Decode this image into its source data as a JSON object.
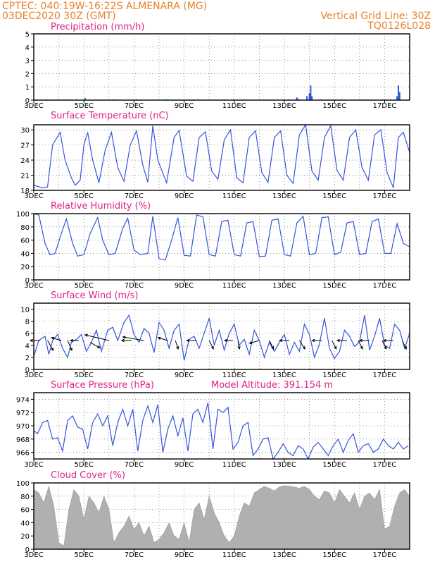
{
  "header": {
    "line1": "CPTEC:   040:19W-16:22S   ALMENARA (MG)",
    "line2": "03DEC2020 30Z (GMT)",
    "right1": "Vertical Grid Line: 30Z",
    "right2": "TQ0126L028"
  },
  "colors": {
    "header": "#e8822a",
    "panel_title": "#e0218a",
    "series_line": "#3355dd",
    "cloud_fill": "#b0b0b0",
    "wind_arrow": "#000000"
  },
  "x_axis": {
    "start_day": 3,
    "end_day": 18,
    "tick_labels": [
      "3DEC",
      "5DEC",
      "7DEC",
      "9DEC",
      "11DEC",
      "13DEC",
      "15DEC",
      "17DEC"
    ],
    "tick_days": [
      3,
      5,
      7,
      9,
      11,
      13,
      15,
      17
    ],
    "year_label": "2020"
  },
  "chart_data": [
    {
      "id": "precip",
      "type": "bar",
      "title": "Precipitation (mm/h)",
      "ylim": [
        0,
        5
      ],
      "yticks": [
        0,
        1,
        2,
        3,
        4,
        5
      ],
      "x": [
        3.1,
        3.5,
        3.9,
        4.3,
        4.7,
        5.05,
        5.5,
        6.2,
        7.1,
        8.3,
        9.4,
        10.6,
        11.4,
        12.2,
        13.2,
        13.5,
        13.55,
        13.9,
        14.0,
        14.05,
        14.1,
        14.5,
        15.3,
        16.2,
        16.9,
        17.5,
        17.55,
        17.6
      ],
      "values": [
        0.05,
        0.04,
        0.05,
        0.05,
        0.05,
        0.15,
        0.05,
        0.05,
        0.05,
        0.05,
        0.05,
        0.05,
        0.05,
        0.05,
        0.05,
        0.2,
        0.1,
        0.3,
        0.5,
        1.1,
        0.3,
        0.05,
        0.05,
        0.05,
        0.05,
        0.3,
        1.1,
        0.6
      ]
    },
    {
      "id": "temp",
      "type": "line",
      "title": "Surface Temperature (nC)",
      "ylim": [
        18,
        31
      ],
      "yticks": [
        18,
        21,
        24,
        27,
        30
      ],
      "x": [
        3.0,
        3.35,
        3.55,
        3.75,
        4.05,
        4.25,
        4.5,
        4.65,
        4.85,
        5.0,
        5.15,
        5.35,
        5.6,
        5.85,
        6.1,
        6.35,
        6.6,
        6.85,
        7.1,
        7.35,
        7.55,
        7.75,
        7.95,
        8.3,
        8.6,
        8.8,
        9.1,
        9.35,
        9.6,
        9.85,
        10.1,
        10.35,
        10.6,
        10.85,
        11.1,
        11.35,
        11.6,
        11.85,
        12.1,
        12.35,
        12.6,
        12.85,
        13.1,
        13.35,
        13.6,
        13.85,
        14.1,
        14.35,
        14.6,
        14.85,
        15.1,
        15.35,
        15.6,
        15.85,
        16.1,
        16.35,
        16.6,
        16.85,
        17.1,
        17.35,
        17.55,
        17.75,
        18.0
      ],
      "values": [
        19.0,
        18.5,
        18.7,
        27.0,
        29.5,
        24.0,
        20.5,
        19.0,
        20.0,
        27.0,
        29.5,
        24.0,
        19.5,
        26.0,
        29.5,
        22.5,
        19.8,
        27.0,
        29.8,
        23.0,
        19.6,
        30.8,
        24.0,
        19.5,
        28.5,
        29.9,
        20.8,
        19.8,
        28.5,
        29.6,
        21.8,
        20.2,
        28.0,
        30.0,
        20.5,
        19.5,
        28.5,
        29.8,
        21.5,
        19.6,
        28.5,
        29.8,
        21.0,
        19.4,
        29.0,
        31.0,
        21.8,
        20.0,
        28.5,
        30.8,
        22.0,
        20.0,
        28.5,
        30.0,
        22.5,
        20.0,
        29.0,
        30.0,
        21.5,
        18.5,
        28.5,
        29.5,
        25.5
      ]
    },
    {
      "id": "rh",
      "type": "line",
      "title": "Relative Humidity (%)",
      "ylim": [
        0,
        100
      ],
      "yticks": [
        0,
        20,
        40,
        60,
        80,
        100
      ],
      "x": [
        3.0,
        3.2,
        3.45,
        3.65,
        3.85,
        4.1,
        4.3,
        4.55,
        4.75,
        5.0,
        5.25,
        5.55,
        5.75,
        6.0,
        6.25,
        6.55,
        6.75,
        7.0,
        7.25,
        7.55,
        7.75,
        8.0,
        8.25,
        8.5,
        8.75,
        9.0,
        9.25,
        9.5,
        9.75,
        10.0,
        10.25,
        10.5,
        10.75,
        11.0,
        11.25,
        11.5,
        11.75,
        12.0,
        12.25,
        12.5,
        12.75,
        13.0,
        13.25,
        13.5,
        13.75,
        14.0,
        14.25,
        14.5,
        14.75,
        15.0,
        15.25,
        15.5,
        15.75,
        16.0,
        16.25,
        16.5,
        16.75,
        17.0,
        17.25,
        17.5,
        17.75,
        18.0
      ],
      "values": [
        100,
        98,
        55,
        38,
        40,
        70,
        92,
        55,
        36,
        38,
        70,
        94,
        60,
        38,
        40,
        78,
        93,
        45,
        38,
        40,
        96,
        32,
        30,
        60,
        94,
        37,
        36,
        98,
        95,
        38,
        36,
        88,
        90,
        38,
        36,
        86,
        88,
        35,
        36,
        90,
        92,
        38,
        36,
        86,
        96,
        38,
        40,
        94,
        95,
        38,
        42,
        86,
        88,
        38,
        40,
        88,
        92,
        40,
        40,
        85,
        55,
        50
      ]
    },
    {
      "id": "wind",
      "type": "line",
      "title": "Surface Wind (m/s)",
      "ylim": [
        0,
        11
      ],
      "yticks": [
        0,
        2,
        4,
        6,
        8,
        10
      ],
      "x": [
        3.0,
        3.2,
        3.45,
        3.6,
        3.75,
        3.95,
        4.15,
        4.35,
        4.5,
        4.7,
        4.9,
        5.1,
        5.3,
        5.5,
        5.7,
        5.95,
        6.15,
        6.35,
        6.6,
        6.8,
        7.0,
        7.2,
        7.4,
        7.6,
        7.8,
        8.0,
        8.2,
        8.4,
        8.6,
        8.8,
        9.0,
        9.2,
        9.4,
        9.6,
        9.8,
        10.0,
        10.2,
        10.4,
        10.6,
        10.8,
        11.0,
        11.2,
        11.4,
        11.6,
        11.8,
        12.0,
        12.2,
        12.4,
        12.6,
        12.8,
        13.0,
        13.2,
        13.4,
        13.6,
        13.8,
        14.0,
        14.2,
        14.4,
        14.6,
        14.8,
        15.0,
        15.2,
        15.4,
        15.6,
        15.8,
        16.0,
        16.2,
        16.4,
        16.6,
        16.8,
        17.0,
        17.2,
        17.4,
        17.6,
        17.8,
        18.0
      ],
      "values": [
        2.2,
        4.8,
        5.5,
        2.5,
        4.8,
        5.8,
        3.5,
        2.0,
        4.5,
        5.0,
        5.8,
        3.0,
        4.5,
        6.5,
        3.0,
        6.5,
        7.0,
        4.8,
        7.8,
        9.0,
        5.8,
        4.5,
        6.8,
        6.0,
        2.8,
        7.8,
        6.5,
        3.5,
        6.5,
        7.5,
        1.5,
        5.0,
        5.5,
        3.5,
        6.0,
        8.5,
        4.0,
        6.5,
        3.2,
        6.0,
        7.5,
        4.0,
        5.0,
        2.5,
        6.5,
        4.8,
        2.0,
        4.5,
        3.0,
        4.5,
        5.8,
        2.5,
        4.5,
        3.0,
        7.5,
        5.8,
        2.0,
        4.2,
        8.5,
        3.5,
        1.8,
        3.0,
        6.5,
        5.5,
        3.8,
        4.6,
        9.0,
        3.2,
        5.5,
        8.5,
        4.0,
        3.5,
        7.5,
        6.5,
        3.5,
        6.0
      ],
      "arrows": [
        {
          "x": 3.25,
          "y": 4.8,
          "dx": 14,
          "dy": 0
        },
        {
          "x": 3.55,
          "y": 4.8,
          "dx": -8,
          "dy": 14
        },
        {
          "x": 4.1,
          "y": 4.8,
          "dx": 14,
          "dy": -4
        },
        {
          "x": 4.35,
          "y": 4.8,
          "dx": -6,
          "dy": 14
        },
        {
          "x": 4.8,
          "y": 4.8,
          "dx": 12,
          "dy": 0
        },
        {
          "x": 5.25,
          "y": 4.5,
          "dx": -14,
          "dy": 8
        },
        {
          "x": 6.0,
          "y": 4.8,
          "dx": 34,
          "dy": -8
        },
        {
          "x": 6.9,
          "y": 4.8,
          "dx": 14,
          "dy": 0
        },
        {
          "x": 7.4,
          "y": 4.8,
          "dx": 30,
          "dy": -5
        },
        {
          "x": 8.35,
          "y": 4.8,
          "dx": 14,
          "dy": -4
        },
        {
          "x": 8.65,
          "y": 4.8,
          "dx": -4,
          "dy": 12
        },
        {
          "x": 9.5,
          "y": 4.8,
          "dx": 14,
          "dy": 0
        },
        {
          "x": 10.0,
          "y": 4.8,
          "dx": -6,
          "dy": 12
        },
        {
          "x": 10.95,
          "y": 4.8,
          "dx": 12,
          "dy": 0
        },
        {
          "x": 11.15,
          "y": 4.8,
          "dx": -2,
          "dy": 12
        },
        {
          "x": 12.0,
          "y": 4.8,
          "dx": 14,
          "dy": 4
        },
        {
          "x": 12.4,
          "y": 4.8,
          "dx": -6,
          "dy": 12
        },
        {
          "x": 13.2,
          "y": 4.8,
          "dx": 14,
          "dy": 0
        },
        {
          "x": 13.6,
          "y": 4.8,
          "dx": -8,
          "dy": 12
        },
        {
          "x": 14.5,
          "y": 4.8,
          "dx": 14,
          "dy": 0
        },
        {
          "x": 14.9,
          "y": 4.8,
          "dx": -6,
          "dy": 12
        },
        {
          "x": 15.5,
          "y": 4.8,
          "dx": 14,
          "dy": 0
        },
        {
          "x": 15.95,
          "y": 4.8,
          "dx": -6,
          "dy": 12
        },
        {
          "x": 16.4,
          "y": 4.8,
          "dx": 14,
          "dy": 0
        },
        {
          "x": 16.9,
          "y": 4.8,
          "dx": -6,
          "dy": 12
        },
        {
          "x": 17.35,
          "y": 4.8,
          "dx": 14,
          "dy": 0
        },
        {
          "x": 17.7,
          "y": 4.8,
          "dx": -6,
          "dy": 12
        }
      ]
    },
    {
      "id": "pressure",
      "type": "line",
      "title": "Surface Pressure (hPa)",
      "subtitle": "Model Altitude: 391.154 m",
      "ylim": [
        965,
        975
      ],
      "yticks": [
        966,
        968,
        970,
        972,
        974
      ],
      "x": [
        3.0,
        3.15,
        3.35,
        3.55,
        3.75,
        3.95,
        4.15,
        4.35,
        4.55,
        4.75,
        4.95,
        5.15,
        5.35,
        5.55,
        5.75,
        5.95,
        6.15,
        6.35,
        6.55,
        6.75,
        6.95,
        7.15,
        7.35,
        7.55,
        7.75,
        7.95,
        8.15,
        8.35,
        8.55,
        8.75,
        8.95,
        9.15,
        9.35,
        9.55,
        9.75,
        9.95,
        10.15,
        10.35,
        10.55,
        10.75,
        10.95,
        11.15,
        11.35,
        11.55,
        11.75,
        11.95,
        12.15,
        12.35,
        12.55,
        12.75,
        12.95,
        13.15,
        13.35,
        13.55,
        13.75,
        13.95,
        14.15,
        14.35,
        14.55,
        14.75,
        14.95,
        15.15,
        15.35,
        15.55,
        15.75,
        15.95,
        16.15,
        16.35,
        16.55,
        16.75,
        16.95,
        17.15,
        17.35,
        17.55,
        17.75,
        17.95
      ],
      "values": [
        969.3,
        968.8,
        970.5,
        970.8,
        968.0,
        968.2,
        966.2,
        970.8,
        971.5,
        969.8,
        969.5,
        966.5,
        970.5,
        971.8,
        970.0,
        971.5,
        967.0,
        970.5,
        972.5,
        970.0,
        972.5,
        966.2,
        970.8,
        973.0,
        970.5,
        973.2,
        966.0,
        969.5,
        971.5,
        968.5,
        971.2,
        966.2,
        971.8,
        972.5,
        970.5,
        973.5,
        966.5,
        972.5,
        972.0,
        972.8,
        966.5,
        967.5,
        970.0,
        970.5,
        965.5,
        966.5,
        968.0,
        968.2,
        965.0,
        966.0,
        967.3,
        966.0,
        965.5,
        967.0,
        966.5,
        965.0,
        966.8,
        967.5,
        966.5,
        965.5,
        967.0,
        968.0,
        966.0,
        967.8,
        968.8,
        966.0,
        967.0,
        967.3,
        966.0,
        966.5,
        968.0,
        967.0,
        966.5,
        967.5,
        966.5,
        967.0
      ]
    },
    {
      "id": "cloud",
      "type": "area",
      "title": "Cloud Cover (%)",
      "ylim": [
        0,
        100
      ],
      "yticks": [
        0,
        20,
        40,
        60,
        80,
        100
      ],
      "x": [
        3.0,
        3.2,
        3.4,
        3.6,
        3.8,
        4.0,
        4.2,
        4.4,
        4.6,
        4.8,
        5.0,
        5.2,
        5.4,
        5.6,
        5.8,
        6.0,
        6.2,
        6.4,
        6.6,
        6.8,
        7.0,
        7.2,
        7.4,
        7.6,
        7.8,
        8.0,
        8.2,
        8.4,
        8.6,
        8.8,
        9.0,
        9.2,
        9.4,
        9.6,
        9.8,
        10.0,
        10.2,
        10.4,
        10.6,
        10.8,
        11.0,
        11.2,
        11.4,
        11.6,
        11.8,
        12.0,
        12.2,
        12.4,
        12.6,
        12.8,
        13.0,
        13.2,
        13.4,
        13.6,
        13.8,
        14.0,
        14.2,
        14.4,
        14.6,
        14.8,
        15.0,
        15.2,
        15.4,
        15.6,
        15.8,
        16.0,
        16.2,
        16.4,
        16.6,
        16.8,
        17.0,
        17.2,
        17.4,
        17.6,
        17.8,
        18.0
      ],
      "values": [
        90,
        85,
        70,
        95,
        65,
        10,
        5,
        60,
        90,
        80,
        45,
        80,
        70,
        55,
        80,
        60,
        10,
        25,
        35,
        50,
        30,
        40,
        20,
        35,
        10,
        15,
        25,
        40,
        20,
        15,
        40,
        10,
        60,
        70,
        45,
        80,
        55,
        40,
        20,
        10,
        20,
        50,
        70,
        65,
        85,
        90,
        95,
        92,
        88,
        94,
        96,
        95,
        94,
        92,
        95,
        90,
        80,
        75,
        88,
        85,
        70,
        90,
        80,
        70,
        85,
        60,
        80,
        85,
        75,
        90,
        30,
        35,
        65,
        85,
        90,
        80
      ]
    }
  ]
}
